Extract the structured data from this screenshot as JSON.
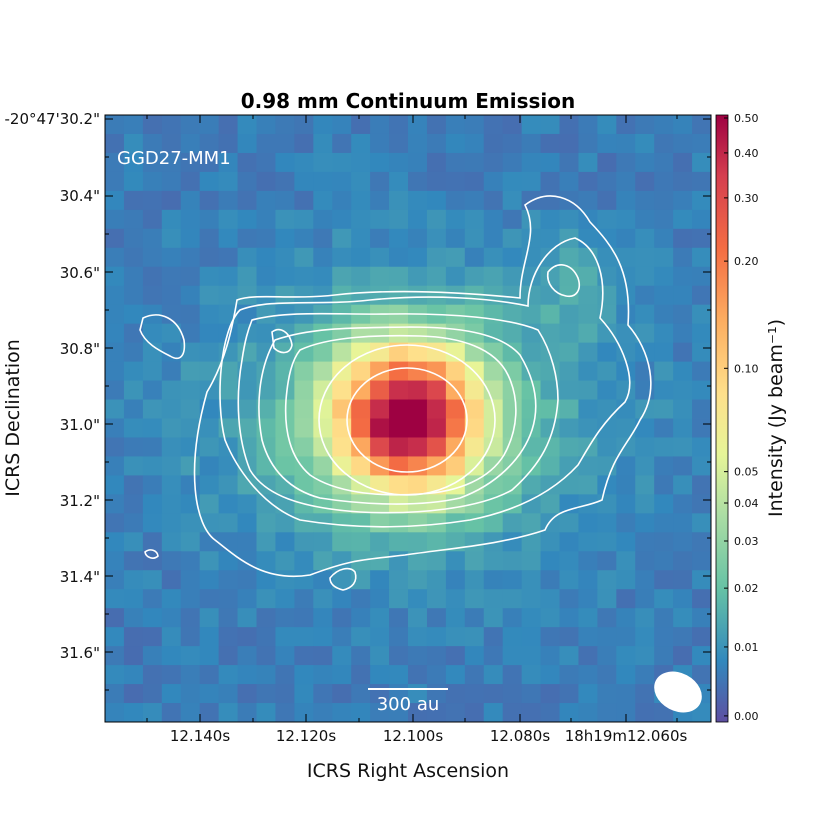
{
  "chart_data": {
    "type": "heatmap",
    "title": "0.98 mm Continuum Emission",
    "xlabel": "ICRS Right Ascension",
    "ylabel": "ICRS Declination",
    "source_label": "GGD27-MM1",
    "scalebar_label": "300 au",
    "x_ticks": [
      "12.140s",
      "12.120s",
      "12.100s",
      "12.080s",
      "18h19m12.060s"
    ],
    "y_ticks": [
      "-20°47'30.2\"",
      "30.4\"",
      "30.6\"",
      "30.8\"",
      "31.0\"",
      "31.2\"",
      "31.4\"",
      "31.6\""
    ],
    "colorbar": {
      "label": "Intensity (Jy beam⁻¹)",
      "ticks": [
        "0.50",
        "0.40",
        "0.30",
        "0.20",
        "0.10",
        "0.05",
        "0.04",
        "0.03",
        "0.02",
        "0.01",
        "0.00"
      ],
      "tick_values": [
        0.5,
        0.4,
        0.3,
        0.2,
        0.1,
        0.05,
        0.04,
        0.03,
        0.02,
        0.01,
        0.0
      ],
      "colormap": "Spectral_r",
      "min": 0.0,
      "max": 0.5
    },
    "peak": {
      "intensity": 0.5,
      "ra": "12.101s",
      "dec": "30.98\""
    },
    "grid_cells": 32,
    "contours": "white"
  },
  "colors": {
    "contour": "#ffffff",
    "background_low": "#5e4fa2",
    "peak": "#9e0142"
  }
}
